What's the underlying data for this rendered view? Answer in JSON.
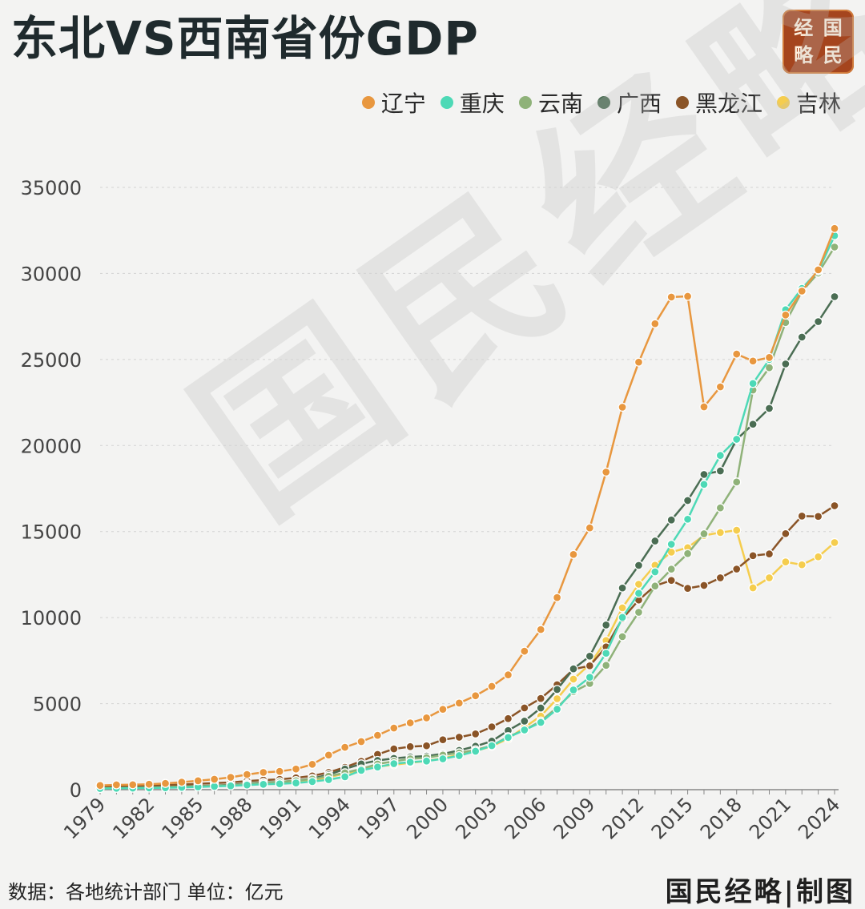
{
  "title": "东北VS西南省份GDP",
  "seal": {
    "chars": [
      "经",
      "国",
      "略",
      "民"
    ]
  },
  "watermark": "国民经略",
  "source": "数据：各地统计部门  单位：亿元",
  "credit": "国民经略|制图",
  "chart_data": {
    "type": "line",
    "x": [
      1979,
      1980,
      1981,
      1982,
      1983,
      1984,
      1985,
      1986,
      1987,
      1988,
      1989,
      1990,
      1991,
      1992,
      1993,
      1994,
      1995,
      1996,
      1997,
      1998,
      1999,
      2000,
      2001,
      2002,
      2003,
      2004,
      2005,
      2006,
      2007,
      2008,
      2009,
      2010,
      2011,
      2012,
      2013,
      2014,
      2015,
      2016,
      2017,
      2018,
      2019,
      2020,
      2021,
      2022,
      2023,
      2024
    ],
    "x_ticks": [
      "1979",
      "1982",
      "1985",
      "1988",
      "1991",
      "1994",
      "1997",
      "2000",
      "2003",
      "2006",
      "2009",
      "2012",
      "2015",
      "2018",
      "2021",
      "2024"
    ],
    "ylim": [
      0,
      35000
    ],
    "y_ticks": [
      0,
      5000,
      10000,
      15000,
      20000,
      25000,
      30000,
      35000
    ],
    "grid": "horizontal dotted",
    "legend_position": "top-right",
    "series": [
      {
        "name": "辽宁",
        "color": "#e8973f",
        "values": [
          245,
          281,
          288,
          315,
          364,
          438,
          518,
          605,
          719,
          881,
          1003,
          1063,
          1200,
          1473,
          2011,
          2462,
          2793,
          3158,
          3582,
          3882,
          4171,
          4669,
          5033,
          5458,
          6003,
          6672,
          8047,
          9305,
          11164,
          13668,
          15212,
          18457,
          22227,
          24846,
          27078,
          28627,
          28669,
          22247,
          23409,
          25315,
          24909,
          25115,
          27584,
          28975,
          30209,
          32613
        ]
      },
      {
        "name": "重庆",
        "color": "#4dd9b6",
        "values": [
          70,
          80,
          90,
          100,
          110,
          130,
          160,
          190,
          220,
          270,
          310,
          340,
          390,
          470,
          580,
          750,
          1123,
          1315,
          1510,
          1603,
          1663,
          1791,
          1977,
          2233,
          2556,
          3035,
          3469,
          3907,
          4676,
          5794,
          6531,
          7926,
          10011,
          11410,
          12657,
          14263,
          15717,
          17741,
          19425,
          20363,
          23606,
          25003,
          27894,
          29129,
          30146,
          32193
        ]
      },
      {
        "name": "云南",
        "color": "#8fb279",
        "values": [
          85,
          95,
          105,
          120,
          140,
          165,
          200,
          230,
          260,
          340,
          380,
          450,
          520,
          620,
          780,
          980,
          1206,
          1492,
          1645,
          1794,
          1856,
          2011,
          2138,
          2312,
          2556,
          3082,
          3462,
          3988,
          4773,
          5692,
          6170,
          7224,
          8893,
          10309,
          11832,
          12815,
          13718,
          14869,
          16376,
          17881,
          23224,
          24522,
          27147,
          28954,
          30021,
          31534
        ]
      },
      {
        "name": "广西",
        "color": "#4a6d53",
        "values": [
          90,
          100,
          115,
          130,
          145,
          170,
          210,
          240,
          280,
          360,
          420,
          450,
          520,
          650,
          870,
          1200,
          1498,
          1698,
          1817,
          1904,
          1953,
          2080,
          2279,
          2524,
          2821,
          3434,
          3984,
          4746,
          5823,
          7021,
          7759,
          9570,
          11721,
          13035,
          14450,
          15673,
          16803,
          18318,
          18523,
          20353,
          21237,
          22157,
          24741,
          26300,
          27202,
          28650
        ]
      },
      {
        "name": "黑龙江",
        "color": "#8a5427",
        "values": [
          180,
          200,
          215,
          235,
          260,
          300,
          340,
          380,
          420,
          500,
          560,
          600,
          690,
          800,
          1000,
          1300,
          1650,
          2050,
          2370,
          2500,
          2550,
          2900,
          3050,
          3240,
          3650,
          4130,
          4750,
          5300,
          6100,
          7000,
          7200,
          8300,
          9935,
          11020,
          11850,
          12160,
          11700,
          11870,
          12310,
          12820,
          13600,
          13700,
          14880,
          15900,
          15880,
          16500
        ]
      },
      {
        "name": "吉林",
        "color": "#f5cd4e",
        "values": [
          100,
          110,
          120,
          130,
          150,
          170,
          200,
          230,
          270,
          330,
          360,
          400,
          460,
          560,
          720,
          940,
          1137,
          1347,
          1446,
          1557,
          1670,
          1821,
          2033,
          2246,
          2523,
          2958,
          3620,
          4275,
          5285,
          6424,
          7279,
          8668,
          10569,
          11939,
          13046,
          13803,
          14063,
          14777,
          14945,
          15075,
          11727,
          12311,
          13236,
          13070,
          13531,
          14361
        ]
      }
    ]
  }
}
